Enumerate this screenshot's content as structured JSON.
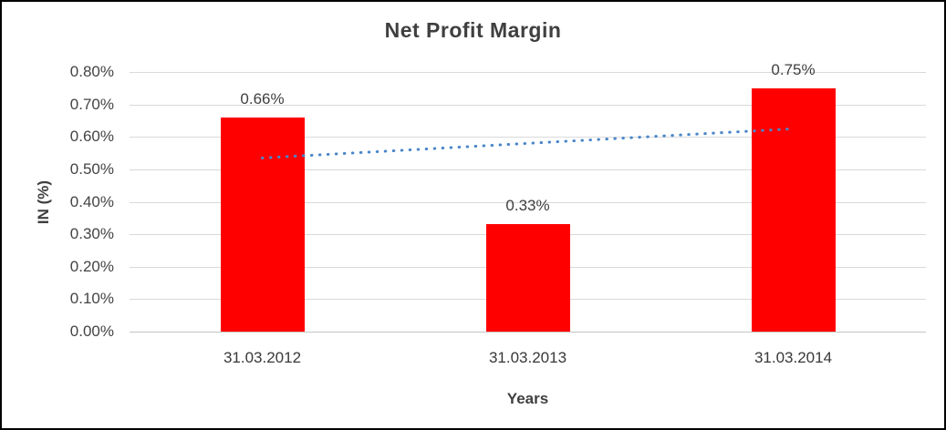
{
  "chart_data": {
    "type": "bar",
    "title": "Net Profit Margin",
    "xlabel": "Years",
    "ylabel": "IN (%)",
    "categories": [
      "31.03.2012",
      "31.03.2013",
      "31.03.2014"
    ],
    "values": [
      0.66,
      0.33,
      0.75
    ],
    "value_labels": [
      "0.66%",
      "0.33%",
      "0.75%"
    ],
    "y_tick_labels": [
      "0.80%",
      "0.70%",
      "0.60%",
      "0.50%",
      "0.40%",
      "0.30%",
      "0.20%",
      "0.10%",
      "0.00%"
    ],
    "ylim": [
      0,
      0.8
    ],
    "ytick_step": 0.1,
    "grid": true,
    "legend": "none",
    "trendline": {
      "type": "linear",
      "style": "dotted",
      "start_value": 0.535,
      "end_value": 0.625
    }
  },
  "colors": {
    "bar": "#ff0000",
    "trendline": "#4a86c8",
    "gridline": "#d9d9d9",
    "axis_line": "#c4c4c4",
    "border": "#000000",
    "text": "#3f3f3f"
  }
}
